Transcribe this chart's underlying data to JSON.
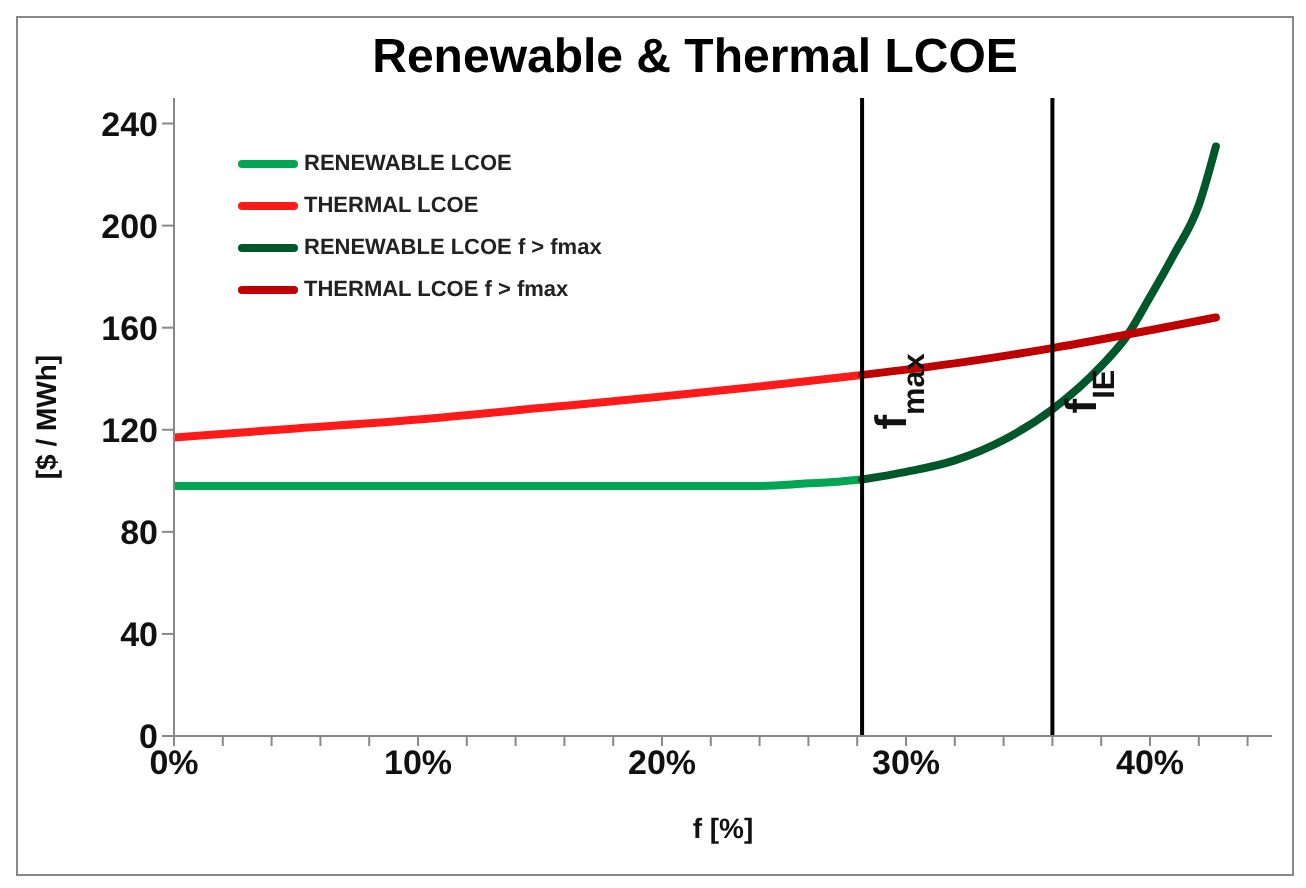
{
  "chart_data": {
    "type": "line",
    "title": "Renewable & Thermal LCOE",
    "xlabel": "f [%]",
    "ylabel": "[$ / MWh]",
    "xlim": [
      0,
      45
    ],
    "ylim": [
      0,
      250
    ],
    "xticks": [
      {
        "value": 0,
        "label": "0%"
      },
      {
        "value": 2,
        "label": null
      },
      {
        "value": 4,
        "label": null
      },
      {
        "value": 6,
        "label": null
      },
      {
        "value": 8,
        "label": null
      },
      {
        "value": 10,
        "label": "10%"
      },
      {
        "value": 12,
        "label": null
      },
      {
        "value": 14,
        "label": null
      },
      {
        "value": 16,
        "label": null
      },
      {
        "value": 18,
        "label": null
      },
      {
        "value": 20,
        "label": "20%"
      },
      {
        "value": 22,
        "label": null
      },
      {
        "value": 24,
        "label": null
      },
      {
        "value": 26,
        "label": null
      },
      {
        "value": 28,
        "label": null
      },
      {
        "value": 30,
        "label": "30%"
      },
      {
        "value": 32,
        "label": null
      },
      {
        "value": 34,
        "label": null
      },
      {
        "value": 36,
        "label": null
      },
      {
        "value": 38,
        "label": null
      },
      {
        "value": 40,
        "label": "40%"
      },
      {
        "value": 42,
        "label": null
      },
      {
        "value": 44,
        "label": null
      }
    ],
    "yticks": [
      0,
      40,
      80,
      120,
      160,
      200,
      240
    ],
    "grid": false,
    "legend": "top left",
    "marker": "none",
    "line_style": "solid",
    "series": [
      {
        "name": "RENEWABLE LCOE",
        "color": "#00a651",
        "x": [
          0,
          10,
          20,
          24,
          26,
          27,
          28.2
        ],
        "values": [
          98,
          98,
          98,
          98,
          99,
          99.5,
          100.5
        ]
      },
      {
        "name": "THERMAL LCOE",
        "color": "#ff1a1a",
        "x": [
          0,
          5,
          10,
          15,
          20,
          25,
          28.2
        ],
        "values": [
          117,
          120.5,
          124,
          128.5,
          133,
          138,
          141.5
        ]
      },
      {
        "name": "RENEWABLE LCOE f > fmax",
        "color": "#00582a",
        "x": [
          28.2,
          30,
          32,
          34,
          36,
          38,
          39,
          40,
          41,
          42,
          42.7
        ],
        "values": [
          100.5,
          103.5,
          108,
          116,
          128,
          145,
          156,
          172,
          189,
          208,
          231
        ]
      },
      {
        "name": "THERMAL LCOE f > fmax",
        "color": "#c00000",
        "x": [
          28.2,
          32,
          36,
          40,
          42.7
        ],
        "values": [
          141.5,
          146,
          152,
          159,
          164
        ]
      }
    ],
    "ref_lines": [
      {
        "axis": "x",
        "value": 28.2,
        "label": "f$_{max}$",
        "color": "#000000"
      },
      {
        "axis": "x",
        "value": 36,
        "label": "f$_{IE}$",
        "color": "#000000"
      }
    ]
  }
}
